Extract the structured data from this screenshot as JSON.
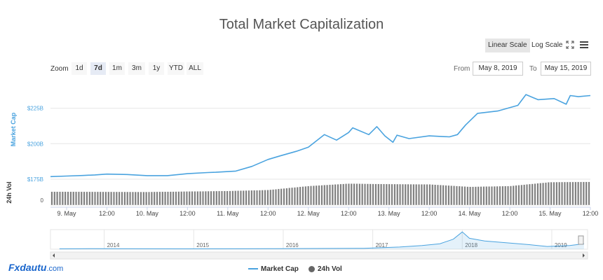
{
  "chart_data": {
    "type": "line",
    "title": "Total Market Capitalization",
    "scale_options": [
      "Linear Scale",
      "Log Scale"
    ],
    "active_scale": "Linear Scale",
    "zoom_label": "Zoom",
    "zoom_options": [
      "1d",
      "7d",
      "1m",
      "3m",
      "1y",
      "YTD",
      "ALL"
    ],
    "active_zoom": "7d",
    "from_label": "From",
    "from_date": "May 8, 2019",
    "to_label": "To",
    "to_date": "May 15, 2019",
    "y_axis_label": "Market Cap",
    "y_ticks": [
      "$175B",
      "$200B",
      "$225B"
    ],
    "y_range_billions": [
      175,
      245
    ],
    "vol_axis_label": "24h Vol",
    "vol_ticks": [
      "0"
    ],
    "x_tick_labels": [
      "9. May",
      "12:00",
      "10. May",
      "12:00",
      "11. May",
      "12:00",
      "12. May",
      "12:00",
      "13. May",
      "12:00",
      "14. May",
      "12:00",
      "15. May",
      "12:00"
    ],
    "x_range_days": [
      8.8,
      15.5
    ],
    "series": [
      {
        "name": "Market Cap",
        "unit": "USD billions",
        "color": "#4aa3df",
        "x_days": [
          8.8,
          9.0,
          9.2,
          9.35,
          9.5,
          9.75,
          10.0,
          10.25,
          10.5,
          10.75,
          10.85,
          11.1,
          11.3,
          11.5,
          11.65,
          11.85,
          12.0,
          12.2,
          12.35,
          12.5,
          12.55,
          12.75,
          12.85,
          12.95,
          13.05,
          13.1,
          13.25,
          13.5,
          13.75,
          13.85,
          13.95,
          14.1,
          14.35,
          14.6,
          14.7,
          14.85,
          15.05,
          15.2,
          15.25,
          15.35,
          15.5
        ],
        "values": [
          176.8,
          177.2,
          177.6,
          178.0,
          178.6,
          178.3,
          177.5,
          177.5,
          178.9,
          179.7,
          179.9,
          180.7,
          184.0,
          188.9,
          191.4,
          194.6,
          197.6,
          206.4,
          202.5,
          207.9,
          211.2,
          206.4,
          212.0,
          205.5,
          201.0,
          206.0,
          203.6,
          205.5,
          204.8,
          206.4,
          213.1,
          221.4,
          223.0,
          227.0,
          234.6,
          231.0,
          231.8,
          227.8,
          233.9,
          233.1,
          233.9
        ]
      },
      {
        "name": "24h Vol",
        "color": "#7f7f7f",
        "x_days": [
          8.8,
          10.0,
          11.0,
          11.5,
          12.0,
          12.5,
          13.0,
          13.5,
          14.0,
          14.5,
          15.0,
          15.5
        ],
        "relative_values": [
          0.55,
          0.54,
          0.58,
          0.62,
          0.78,
          0.88,
          0.86,
          0.85,
          0.75,
          0.78,
          0.94,
          0.95
        ]
      }
    ],
    "navigator": {
      "years": [
        "2014",
        "2015",
        "2016",
        "2017",
        "2018",
        "2019"
      ],
      "x_years": [
        2013.5,
        2013.9,
        2014.9,
        2015.9,
        2016.9,
        2017.3,
        2017.55,
        2017.75,
        2017.9,
        2018.0,
        2018.08,
        2018.25,
        2018.5,
        2018.75,
        2018.95,
        2019.2,
        2019.36
      ],
      "values": [
        0.02,
        0.03,
        0.02,
        0.03,
        0.05,
        0.12,
        0.2,
        0.3,
        0.55,
        0.95,
        0.6,
        0.45,
        0.35,
        0.25,
        0.15,
        0.2,
        0.3
      ]
    },
    "grid": true,
    "legend_position": "bottom-center"
  },
  "watermark": {
    "brand": "Fxdautu",
    "suffix": ".com"
  },
  "legend": {
    "items": [
      "Market Cap",
      "24h Vol"
    ]
  }
}
